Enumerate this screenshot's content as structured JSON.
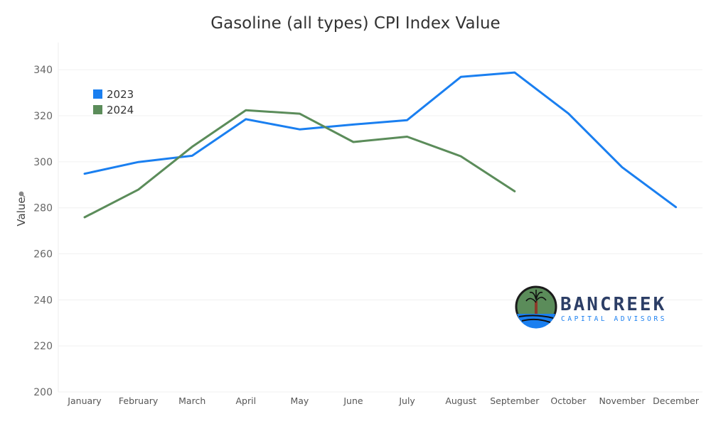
{
  "chart_data": {
    "type": "line",
    "title": "Gasoline (all types) CPI Index Value",
    "ylabel": "Value",
    "xlabel": "",
    "categories": [
      "January",
      "February",
      "March",
      "April",
      "May",
      "June",
      "July",
      "August",
      "September",
      "October",
      "November",
      "December"
    ],
    "ylim": [
      200,
      345
    ],
    "yticks": [
      200,
      220,
      240,
      260,
      280,
      300,
      320,
      340
    ],
    "grid": true,
    "legend_position": "top-left",
    "series": [
      {
        "name": "2023",
        "color": "#1a7ff0",
        "values": [
          294.8,
          299.9,
          302.6,
          318.5,
          314.1,
          316.2,
          318.1,
          336.9,
          338.8,
          321.0,
          297.6,
          280.3
        ]
      },
      {
        "name": "2024",
        "color": "#5b8c5a",
        "values": [
          275.9,
          287.9,
          306.5,
          322.4,
          320.9,
          308.6,
          310.9,
          302.4,
          287.2,
          null,
          null,
          null
        ]
      }
    ]
  },
  "logo": {
    "name": "BANCREEK",
    "tagline": "CAPITAL ADVISORS",
    "icon": "tree-in-circle-icon",
    "primary_color": "#2c3e66",
    "accent_color": "#1a7ff0"
  }
}
